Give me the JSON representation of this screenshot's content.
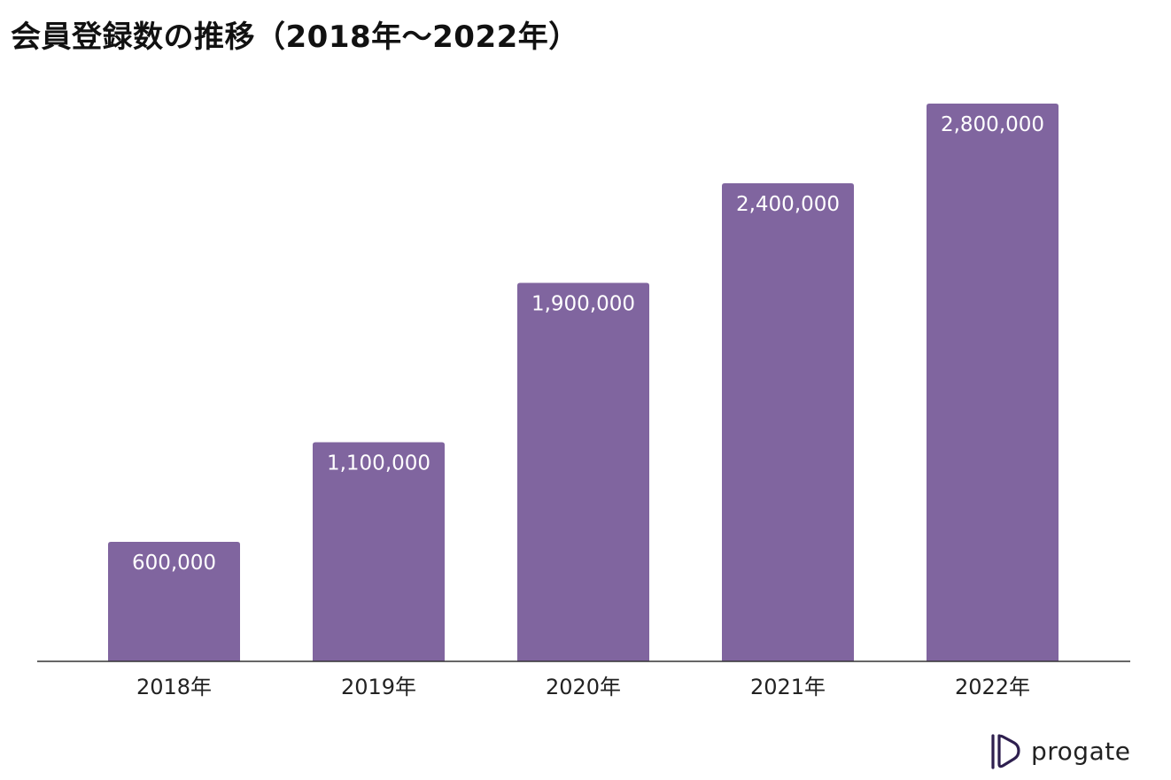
{
  "chart_data": {
    "type": "bar",
    "title": "会員登録数の推移（2018年〜2022年）",
    "categories": [
      "2018年",
      "2019年",
      "2020年",
      "2021年",
      "2022年"
    ],
    "values": [
      600000,
      1100000,
      1900000,
      2400000,
      2800000
    ],
    "value_labels": [
      "600,000",
      "1,100,000",
      "1,900,000",
      "2,400,000",
      "2,800,000"
    ],
    "xlabel": "",
    "ylabel": "",
    "ylim": [
      0,
      3000000
    ],
    "grid": false,
    "legend": "none",
    "colors": {
      "bar": "#80659f",
      "bar_label": "#ffffff",
      "axis": "#333333",
      "tick_label": "#222222"
    }
  },
  "brand": {
    "name": "progate",
    "logo_icon": "progate-logo-icon",
    "logo_color": "#2e1f4f"
  }
}
